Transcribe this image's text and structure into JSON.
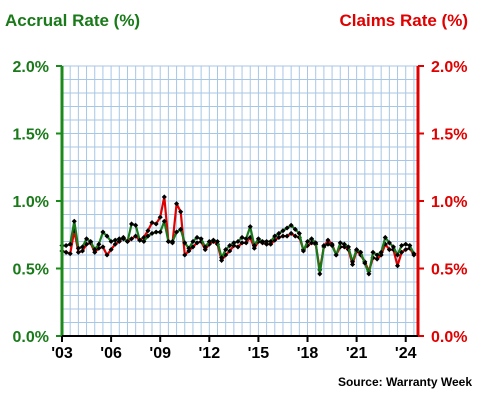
{
  "chart_data": {
    "type": "line",
    "left_axis_title": "Accrual Rate (%)",
    "right_axis_title": "Claims Rate (%)",
    "source": "Source: Warranty Week",
    "x_tick_labels": [
      "'03",
      "'06",
      "'09",
      "'12",
      "'15",
      "'18",
      "'21",
      "'24"
    ],
    "x_tick_values": [
      2003,
      2006,
      2009,
      2012,
      2015,
      2018,
      2021,
      2024
    ],
    "xlim": [
      2003,
      2024.75
    ],
    "ylim": [
      0,
      2.0
    ],
    "left_tick_labels": [
      "0.0%",
      "0.5%",
      "1.0%",
      "1.5%",
      "2.0%"
    ],
    "right_tick_labels": [
      "0.0%",
      "0.5%",
      "1.0%",
      "1.5%",
      "2.0%"
    ],
    "y_tick_values": [
      0,
      0.5,
      1.0,
      1.5,
      2.0
    ],
    "grid": true,
    "colors": {
      "accrual": "#1a7a1a",
      "claims": "#e00000",
      "grid": "#a8c6e6",
      "axis_left": "#1a8a1a",
      "axis_right": "#e00000"
    },
    "series": [
      {
        "key": "accrual",
        "x": [
          2003.0,
          2003.25,
          2003.5,
          2003.75,
          2004.0,
          2004.25,
          2004.5,
          2004.75,
          2005.0,
          2005.25,
          2005.5,
          2005.75,
          2006.0,
          2006.25,
          2006.5,
          2006.75,
          2007.0,
          2007.25,
          2007.5,
          2007.75,
          2008.0,
          2008.25,
          2008.5,
          2008.75,
          2009.0,
          2009.25,
          2009.5,
          2009.75,
          2010.0,
          2010.25,
          2010.5,
          2010.75,
          2011.0,
          2011.25,
          2011.5,
          2011.75,
          2012.0,
          2012.25,
          2012.5,
          2012.75,
          2013.0,
          2013.25,
          2013.5,
          2013.75,
          2014.0,
          2014.25,
          2014.5,
          2014.75,
          2015.0,
          2015.25,
          2015.5,
          2015.75,
          2016.0,
          2016.25,
          2016.5,
          2016.75,
          2017.0,
          2017.25,
          2017.5,
          2017.75,
          2018.0,
          2018.25,
          2018.5,
          2018.75,
          2019.0,
          2019.25,
          2019.5,
          2019.75,
          2020.0,
          2020.25,
          2020.5,
          2020.75,
          2021.0,
          2021.25,
          2021.5,
          2021.75,
          2022.0,
          2022.25,
          2022.5,
          2022.75,
          2023.0,
          2023.25,
          2023.5,
          2023.75,
          2024.0,
          2024.25,
          2024.5
        ],
        "values": [
          0.67,
          0.67,
          0.68,
          0.85,
          0.65,
          0.66,
          0.72,
          0.7,
          0.64,
          0.68,
          0.77,
          0.74,
          0.7,
          0.71,
          0.72,
          0.72,
          0.7,
          0.83,
          0.82,
          0.71,
          0.7,
          0.74,
          0.76,
          0.77,
          0.77,
          0.85,
          0.7,
          0.7,
          0.77,
          0.79,
          0.69,
          0.65,
          0.7,
          0.73,
          0.72,
          0.66,
          0.7,
          0.71,
          0.7,
          0.58,
          0.64,
          0.67,
          0.69,
          0.7,
          0.73,
          0.72,
          0.81,
          0.67,
          0.72,
          0.7,
          0.7,
          0.7,
          0.74,
          0.76,
          0.78,
          0.8,
          0.82,
          0.79,
          0.76,
          0.63,
          0.7,
          0.72,
          0.69,
          0.46,
          0.67,
          0.68,
          0.67,
          0.6,
          0.69,
          0.68,
          0.66,
          0.55,
          0.64,
          0.62,
          0.54,
          0.46,
          0.62,
          0.6,
          0.62,
          0.73,
          0.69,
          0.66,
          0.6,
          0.67,
          0.68,
          0.67,
          0.61
        ]
      },
      {
        "key": "claims",
        "x": [
          2003.0,
          2003.25,
          2003.5,
          2003.75,
          2004.0,
          2004.25,
          2004.5,
          2004.75,
          2005.0,
          2005.25,
          2005.5,
          2005.75,
          2006.0,
          2006.25,
          2006.5,
          2006.75,
          2007.0,
          2007.25,
          2007.5,
          2007.75,
          2008.0,
          2008.25,
          2008.5,
          2008.75,
          2009.0,
          2009.25,
          2009.5,
          2009.75,
          2010.0,
          2010.25,
          2010.5,
          2010.75,
          2011.0,
          2011.25,
          2011.5,
          2011.75,
          2012.0,
          2012.25,
          2012.5,
          2012.75,
          2013.0,
          2013.25,
          2013.5,
          2013.75,
          2014.0,
          2014.25,
          2014.5,
          2014.75,
          2015.0,
          2015.25,
          2015.5,
          2015.75,
          2016.0,
          2016.25,
          2016.5,
          2016.75,
          2017.0,
          2017.25,
          2017.5,
          2017.75,
          2018.0,
          2018.25,
          2018.5,
          2018.75,
          2019.0,
          2019.25,
          2019.5,
          2019.75,
          2020.0,
          2020.25,
          2020.5,
          2020.75,
          2021.0,
          2021.25,
          2021.5,
          2021.75,
          2022.0,
          2022.25,
          2022.5,
          2022.75,
          2023.0,
          2023.25,
          2023.5,
          2023.75,
          2024.0,
          2024.25,
          2024.5
        ],
        "values": [
          0.63,
          0.62,
          0.61,
          0.78,
          0.62,
          0.63,
          0.68,
          0.69,
          0.62,
          0.65,
          0.66,
          0.6,
          0.64,
          0.68,
          0.7,
          0.73,
          0.7,
          0.72,
          0.74,
          0.71,
          0.73,
          0.78,
          0.84,
          0.83,
          0.88,
          1.03,
          0.7,
          0.69,
          0.98,
          0.92,
          0.6,
          0.63,
          0.66,
          0.69,
          0.7,
          0.64,
          0.68,
          0.7,
          0.68,
          0.56,
          0.6,
          0.63,
          0.67,
          0.66,
          0.69,
          0.69,
          0.73,
          0.65,
          0.7,
          0.69,
          0.68,
          0.68,
          0.71,
          0.73,
          0.74,
          0.74,
          0.76,
          0.74,
          0.73,
          0.64,
          0.67,
          0.69,
          0.68,
          0.49,
          0.66,
          0.71,
          0.68,
          0.6,
          0.66,
          0.66,
          0.64,
          0.53,
          0.63,
          0.6,
          0.55,
          0.48,
          0.58,
          0.57,
          0.6,
          0.68,
          0.64,
          0.64,
          0.52,
          0.62,
          0.64,
          0.65,
          0.6
        ]
      }
    ]
  }
}
